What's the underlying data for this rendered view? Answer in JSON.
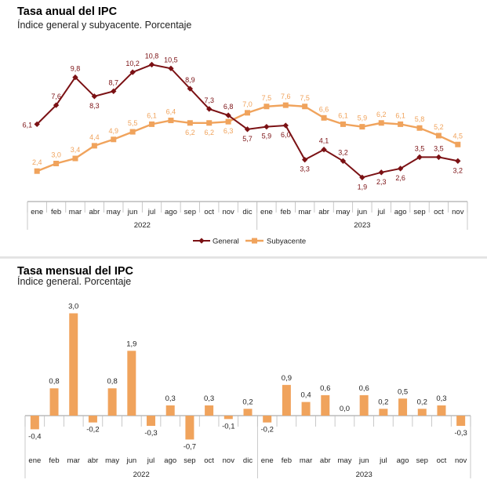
{
  "chart_data": [
    {
      "type": "line",
      "title": "Tasa anual del IPC",
      "subtitle": "Índice general y subyacente. Porcentaje",
      "months": [
        "ene",
        "feb",
        "mar",
        "abr",
        "may",
        "jun",
        "jul",
        "ago",
        "sep",
        "oct",
        "nov",
        "dic",
        "ene",
        "feb",
        "mar",
        "abr",
        "may",
        "jun",
        "jul",
        "ago",
        "sep",
        "oct",
        "nov"
      ],
      "years": [
        {
          "label": "2022",
          "count": 12
        },
        {
          "label": "2023",
          "count": 11
        }
      ],
      "ylim": [
        0,
        12
      ],
      "series": [
        {
          "name": "General",
          "color": "#7b1114",
          "values": [
            6.1,
            7.6,
            9.8,
            8.3,
            8.7,
            10.2,
            10.8,
            10.5,
            8.9,
            7.3,
            6.8,
            5.7,
            5.9,
            6.0,
            3.3,
            4.1,
            3.2,
            1.9,
            2.3,
            2.6,
            3.5,
            3.5,
            3.2
          ],
          "labels": [
            "6,1",
            "7,6",
            "9,8",
            "8,3",
            "8,7",
            "10,2",
            "10,8",
            "10,5",
            "8,9",
            "7,3",
            "6,8",
            "5,7",
            "5,9",
            "6,0",
            "3,3",
            "4,1",
            "3,2",
            "1,9",
            "2,3",
            "2,6",
            "3,5",
            "3,5",
            "3,2"
          ],
          "label_pos": [
            "left",
            "above",
            "above",
            "below",
            "above",
            "above",
            "above",
            "above",
            "above",
            "above",
            "above",
            "below",
            "below",
            "below",
            "below",
            "above",
            "above",
            "below",
            "below",
            "below",
            "above",
            "above",
            "below"
          ]
        },
        {
          "name": "Subyacente",
          "color": "#f0a35c",
          "values": [
            2.4,
            3.0,
            3.4,
            4.4,
            4.9,
            5.5,
            6.1,
            6.4,
            6.2,
            6.2,
            6.3,
            7.0,
            7.5,
            7.6,
            7.5,
            6.6,
            6.1,
            5.9,
            6.2,
            6.1,
            5.8,
            5.2,
            4.5
          ],
          "labels": [
            "2,4",
            "3,0",
            "3,4",
            "4,4",
            "4,9",
            "5,5",
            "6,1",
            "6,4",
            "6,2",
            "6,2",
            "6,3",
            "7,0",
            "7,5",
            "7,6",
            "7,5",
            "6,6",
            "6,1",
            "5,9",
            "6,2",
            "6,1",
            "5,8",
            "5,2",
            "4,5"
          ],
          "label_pos": [
            "above",
            "above",
            "above",
            "above",
            "above",
            "above",
            "above",
            "above",
            "below",
            "below",
            "below",
            "above",
            "above",
            "above",
            "above",
            "above",
            "above",
            "above",
            "above",
            "above",
            "above",
            "above",
            "above"
          ]
        }
      ],
      "legend": {
        "position": "bottom-center",
        "entries": [
          "General",
          "Subyacente"
        ]
      }
    },
    {
      "type": "bar",
      "title": "Tasa mensual del IPC",
      "subtitle": "Índice general. Porcentaje",
      "months": [
        "ene",
        "feb",
        "mar",
        "abr",
        "may",
        "jun",
        "jul",
        "ago",
        "sep",
        "oct",
        "nov",
        "dic",
        "ene",
        "feb",
        "mar",
        "abr",
        "may",
        "jun",
        "jul",
        "ago",
        "sep",
        "oct",
        "nov"
      ],
      "years": [
        {
          "label": "2022",
          "count": 12
        },
        {
          "label": "2023",
          "count": 11
        }
      ],
      "color": "#f0a35c",
      "ylim": [
        -0.8,
        3.2
      ],
      "values": [
        -0.4,
        0.8,
        3.0,
        -0.2,
        0.8,
        1.9,
        -0.3,
        0.3,
        -0.7,
        0.3,
        -0.1,
        0.2,
        -0.2,
        0.9,
        0.4,
        0.6,
        0.0,
        0.6,
        0.2,
        0.5,
        0.2,
        0.3,
        -0.3
      ],
      "labels": [
        "-0,4",
        "0,8",
        "3,0",
        "-0,2",
        "0,8",
        "1,9",
        "-0,3",
        "0,3",
        "-0,7",
        "0,3",
        "-0,1",
        "0,2",
        "-0,2",
        "0,9",
        "0,4",
        "0,6",
        "0,0",
        "0,6",
        "0,2",
        "0,5",
        "0,2",
        "0,3",
        "-0,3"
      ],
      "label_pos": [
        "below",
        "above",
        "above",
        "below",
        "above",
        "above",
        "below",
        "above",
        "below",
        "above",
        "below",
        "above",
        "below",
        "above",
        "above",
        "above",
        "above",
        "above",
        "above",
        "above",
        "above",
        "above",
        "below"
      ]
    }
  ]
}
